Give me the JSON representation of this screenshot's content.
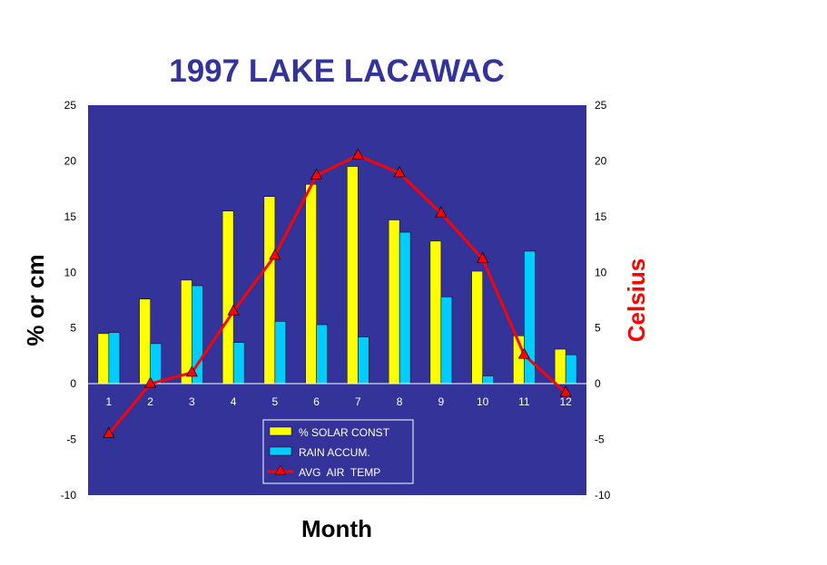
{
  "chart_data": {
    "type": "bar",
    "title": "1997 LAKE LACAWAC",
    "xlabel": "Month",
    "ylabel": "% or cm",
    "y2label": "Celsius",
    "ylim": [
      -10,
      25
    ],
    "y2lim": [
      -10,
      25
    ],
    "yticks": [
      "25",
      "20",
      "15",
      "10",
      "5",
      "0",
      "-5",
      "-10"
    ],
    "y2ticks": [
      "25",
      "20",
      "15",
      "10",
      "5",
      "0",
      "-5",
      "-10"
    ],
    "categories": [
      "1",
      "2",
      "3",
      "4",
      "5",
      "6",
      "7",
      "8",
      "9",
      "10",
      "11",
      "12"
    ],
    "plot_background": "#333399",
    "grid": false,
    "legend_position": "bottom-center inside plot",
    "series": [
      {
        "name": "% SOLAR CONST",
        "type": "bar",
        "axis": "left",
        "color": "#ffff00",
        "values": [
          4.5,
          7.6,
          9.3,
          15.5,
          16.8,
          17.9,
          19.5,
          14.7,
          12.8,
          10.1,
          4.3,
          3.1
        ]
      },
      {
        "name": "RAIN ACCUM.",
        "type": "bar",
        "axis": "left",
        "color": "#00ccff",
        "values": [
          4.6,
          3.6,
          8.8,
          3.7,
          5.6,
          5.3,
          4.2,
          13.6,
          7.8,
          0.7,
          11.9,
          2.6
        ]
      },
      {
        "name": "AVG  AIR  TEMP",
        "type": "line",
        "axis": "right",
        "color": "#ff0000",
        "marker": "triangle",
        "values": [
          -4.5,
          0.0,
          1.0,
          6.5,
          11.5,
          18.7,
          20.5,
          18.9,
          15.3,
          11.2,
          2.6,
          -0.8
        ]
      }
    ]
  }
}
